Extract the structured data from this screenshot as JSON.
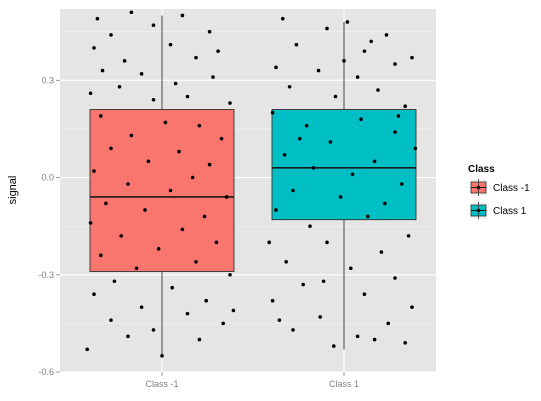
{
  "chart_data": {
    "type": "boxplot",
    "title": "",
    "xlabel": "",
    "ylabel": "signal",
    "ylim": [
      -0.6,
      0.52
    ],
    "y_ticks": [
      -0.6,
      -0.3,
      0.0,
      0.3
    ],
    "y_tick_labels": [
      "-0.6",
      "-0.3",
      "0.0",
      "0.3"
    ],
    "categories": [
      "Class -1",
      "Class 1"
    ],
    "grid": true,
    "legend": {
      "title": "Class",
      "position": "right",
      "entries": [
        "Class -1",
        "Class 1"
      ]
    },
    "boxes": [
      {
        "name": "Class -1",
        "color": "#F8766D",
        "whisker_low": -0.55,
        "q1": -0.29,
        "median": -0.06,
        "q3": 0.21,
        "whisker_high": 0.5
      },
      {
        "name": "Class 1",
        "color": "#00BFC4",
        "whisker_low": -0.53,
        "q1": -0.13,
        "median": 0.03,
        "q3": 0.21,
        "whisker_high": 0.48
      }
    ],
    "points": {
      "Class -1": [
        {
          "x": -0.38,
          "y": 0.49
        },
        {
          "x": -0.18,
          "y": 0.51
        },
        {
          "x": 0.12,
          "y": 0.5
        },
        {
          "x": 0.28,
          "y": 0.45
        },
        {
          "x": -0.3,
          "y": 0.44
        },
        {
          "x": -0.05,
          "y": 0.47
        },
        {
          "x": 0.33,
          "y": 0.39
        },
        {
          "x": -0.4,
          "y": 0.4
        },
        {
          "x": -0.22,
          "y": 0.36
        },
        {
          "x": 0.05,
          "y": 0.41
        },
        {
          "x": 0.2,
          "y": 0.37
        },
        {
          "x": -0.35,
          "y": 0.33
        },
        {
          "x": -0.12,
          "y": 0.32
        },
        {
          "x": 0.08,
          "y": 0.29
        },
        {
          "x": 0.3,
          "y": 0.31
        },
        {
          "x": -0.42,
          "y": 0.26
        },
        {
          "x": 0.15,
          "y": 0.25
        },
        {
          "x": -0.25,
          "y": 0.28
        },
        {
          "x": 0.4,
          "y": 0.23
        },
        {
          "x": -0.05,
          "y": 0.24
        },
        {
          "x": -0.36,
          "y": 0.19
        },
        {
          "x": 0.02,
          "y": 0.17
        },
        {
          "x": 0.22,
          "y": 0.16
        },
        {
          "x": -0.18,
          "y": 0.13
        },
        {
          "x": 0.35,
          "y": 0.12
        },
        {
          "x": -0.3,
          "y": 0.09
        },
        {
          "x": 0.1,
          "y": 0.08
        },
        {
          "x": -0.08,
          "y": 0.05
        },
        {
          "x": 0.28,
          "y": 0.04
        },
        {
          "x": -0.4,
          "y": 0.02
        },
        {
          "x": 0.18,
          "y": 0.0
        },
        {
          "x": -0.2,
          "y": -0.02
        },
        {
          "x": 0.05,
          "y": -0.04
        },
        {
          "x": 0.38,
          "y": -0.06
        },
        {
          "x": -0.33,
          "y": -0.08
        },
        {
          "x": -0.1,
          "y": -0.1
        },
        {
          "x": 0.25,
          "y": -0.12
        },
        {
          "x": -0.42,
          "y": -0.14
        },
        {
          "x": 0.12,
          "y": -0.16
        },
        {
          "x": -0.24,
          "y": -0.18
        },
        {
          "x": 0.32,
          "y": -0.2
        },
        {
          "x": -0.02,
          "y": -0.22
        },
        {
          "x": -0.36,
          "y": -0.24
        },
        {
          "x": 0.2,
          "y": -0.26
        },
        {
          "x": -0.15,
          "y": -0.28
        },
        {
          "x": 0.4,
          "y": -0.3
        },
        {
          "x": -0.28,
          "y": -0.32
        },
        {
          "x": 0.06,
          "y": -0.34
        },
        {
          "x": -0.4,
          "y": -0.36
        },
        {
          "x": 0.26,
          "y": -0.38
        },
        {
          "x": -0.12,
          "y": -0.4
        },
        {
          "x": 0.15,
          "y": -0.42
        },
        {
          "x": -0.3,
          "y": -0.44
        },
        {
          "x": 0.36,
          "y": -0.45
        },
        {
          "x": -0.05,
          "y": -0.47
        },
        {
          "x": -0.44,
          "y": -0.53
        },
        {
          "x": 0.0,
          "y": -0.55
        },
        {
          "x": 0.22,
          "y": -0.5
        },
        {
          "x": -0.2,
          "y": -0.49
        },
        {
          "x": 0.42,
          "y": -0.41
        }
      ],
      "Class 1": [
        {
          "x": -0.36,
          "y": 0.49
        },
        {
          "x": -0.1,
          "y": 0.46
        },
        {
          "x": 0.02,
          "y": 0.48
        },
        {
          "x": 0.25,
          "y": 0.44
        },
        {
          "x": -0.28,
          "y": 0.41
        },
        {
          "x": 0.12,
          "y": 0.39
        },
        {
          "x": 0.4,
          "y": 0.37
        },
        {
          "x": -0.4,
          "y": 0.34
        },
        {
          "x": -0.15,
          "y": 0.33
        },
        {
          "x": 0.3,
          "y": 0.35
        },
        {
          "x": 0.08,
          "y": 0.31
        },
        {
          "x": -0.32,
          "y": 0.28
        },
        {
          "x": 0.2,
          "y": 0.27
        },
        {
          "x": -0.05,
          "y": 0.25
        },
        {
          "x": 0.36,
          "y": 0.22
        },
        {
          "x": -0.42,
          "y": 0.2
        },
        {
          "x": 0.1,
          "y": 0.18
        },
        {
          "x": -0.22,
          "y": 0.16
        },
        {
          "x": 0.3,
          "y": 0.14
        },
        {
          "x": -0.08,
          "y": 0.11
        },
        {
          "x": 0.42,
          "y": 0.09
        },
        {
          "x": -0.35,
          "y": 0.07
        },
        {
          "x": 0.18,
          "y": 0.05
        },
        {
          "x": -0.18,
          "y": 0.03
        },
        {
          "x": 0.05,
          "y": 0.01
        },
        {
          "x": 0.34,
          "y": -0.02
        },
        {
          "x": -0.3,
          "y": -0.04
        },
        {
          "x": -0.02,
          "y": -0.06
        },
        {
          "x": 0.24,
          "y": -0.08
        },
        {
          "x": -0.4,
          "y": -0.1
        },
        {
          "x": 0.14,
          "y": -0.12
        },
        {
          "x": -0.2,
          "y": -0.15
        },
        {
          "x": 0.38,
          "y": -0.18
        },
        {
          "x": -0.1,
          "y": -0.2
        },
        {
          "x": 0.22,
          "y": -0.23
        },
        {
          "x": -0.34,
          "y": -0.26
        },
        {
          "x": 0.04,
          "y": -0.28
        },
        {
          "x": 0.3,
          "y": -0.31
        },
        {
          "x": -0.24,
          "y": -0.33
        },
        {
          "x": 0.12,
          "y": -0.36
        },
        {
          "x": -0.42,
          "y": -0.38
        },
        {
          "x": 0.4,
          "y": -0.4
        },
        {
          "x": -0.14,
          "y": -0.43
        },
        {
          "x": 0.26,
          "y": -0.45
        },
        {
          "x": -0.3,
          "y": -0.47
        },
        {
          "x": 0.08,
          "y": -0.49
        },
        {
          "x": 0.36,
          "y": -0.51
        },
        {
          "x": -0.06,
          "y": -0.52
        },
        {
          "x": 0.18,
          "y": -0.5
        },
        {
          "x": -0.38,
          "y": -0.44
        },
        {
          "x": 0.0,
          "y": 0.36
        },
        {
          "x": -0.26,
          "y": 0.12
        },
        {
          "x": 0.32,
          "y": 0.19
        },
        {
          "x": -0.12,
          "y": -0.32
        },
        {
          "x": 0.16,
          "y": 0.42
        },
        {
          "x": -0.44,
          "y": -0.2
        }
      ]
    }
  }
}
